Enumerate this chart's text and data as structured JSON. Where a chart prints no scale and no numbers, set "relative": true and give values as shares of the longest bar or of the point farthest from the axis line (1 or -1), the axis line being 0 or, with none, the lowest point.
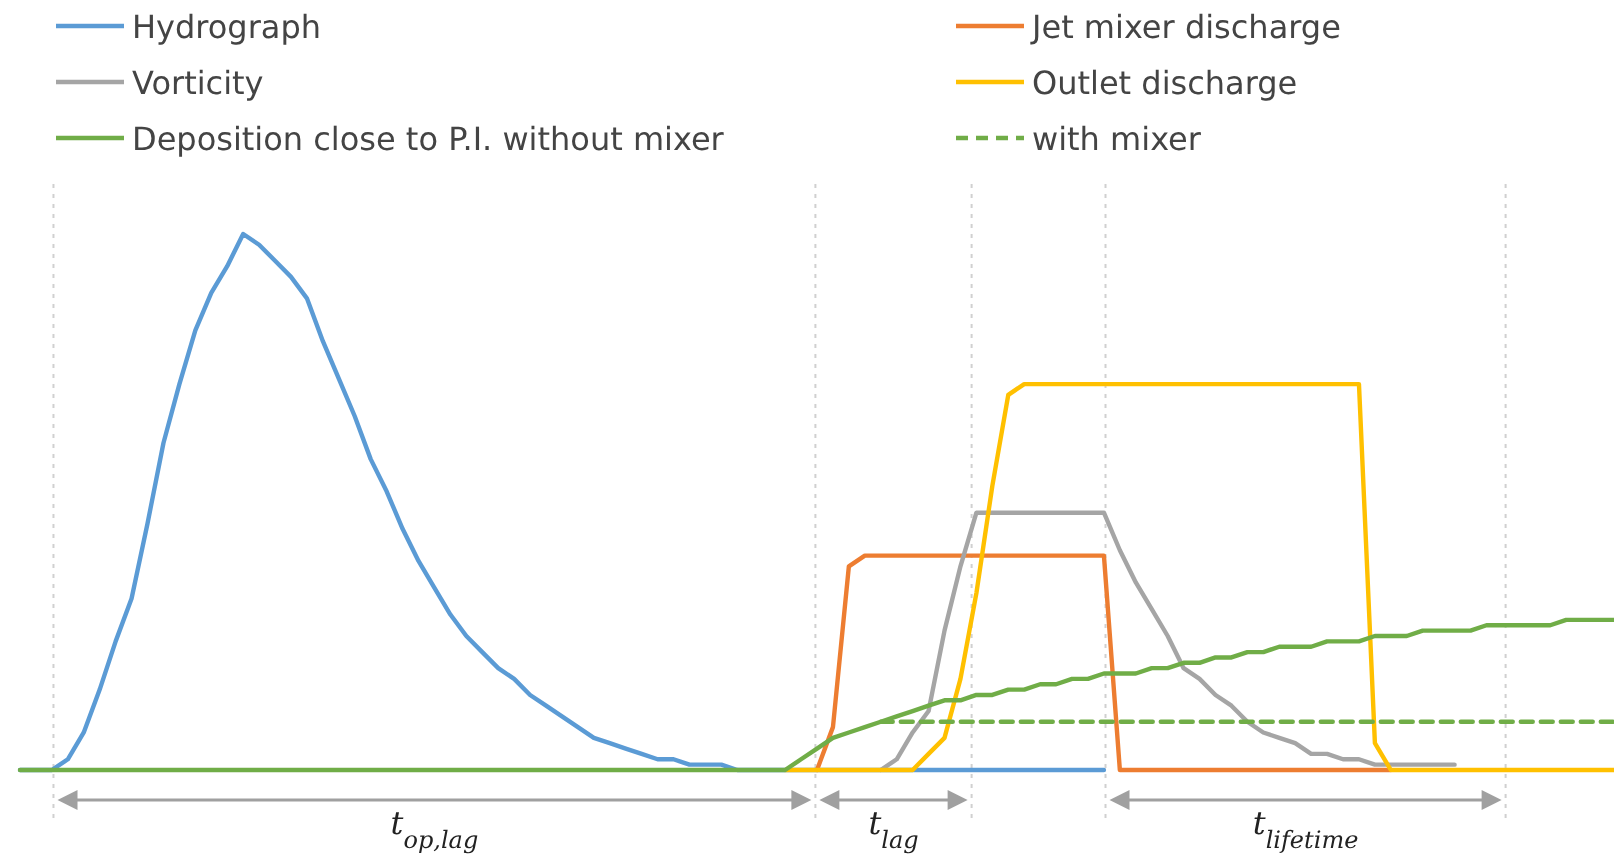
{
  "chart_data": {
    "type": "line",
    "relative": true,
    "legend": "top",
    "categories": [
      null,
      null,
      null,
      null,
      null,
      null,
      null,
      null,
      null,
      null,
      null,
      null,
      null,
      null,
      null,
      null,
      null,
      null,
      null,
      null,
      null,
      null,
      null,
      null,
      null,
      null,
      null,
      null,
      null,
      null,
      null,
      null,
      null,
      null,
      null,
      null,
      null,
      null,
      null,
      null,
      null,
      null,
      null,
      null,
      null,
      null,
      null,
      null,
      null,
      null,
      null,
      null,
      null,
      null,
      null,
      null,
      null,
      null,
      null,
      null,
      null,
      null,
      null,
      null,
      null,
      null,
      null,
      null,
      null,
      null,
      null,
      null,
      null,
      null,
      null,
      null,
      null,
      null,
      null,
      null,
      null,
      null,
      null,
      null,
      null,
      null,
      null,
      null,
      null,
      null,
      null,
      null,
      null,
      null,
      null,
      null,
      null,
      null,
      null,
      null,
      null
    ],
    "series": [
      {
        "name": "Hydrograph",
        "color": "#5b9bd5",
        "values": [
          0,
          0,
          0,
          0.02,
          0.07,
          0.15,
          0.24,
          0.32,
          0.46,
          0.61,
          0.72,
          0.82,
          0.89,
          0.94,
          1,
          0.98,
          0.95,
          0.92,
          0.88,
          0.8,
          0.73,
          0.66,
          0.58,
          0.52,
          0.45,
          0.39,
          0.34,
          0.29,
          0.25,
          0.22,
          0.19,
          0.17,
          0.14,
          0.12,
          0.1,
          0.08,
          0.06,
          0.05,
          0.04,
          0.03,
          0.02,
          0.02,
          0.01,
          0.01,
          0.01,
          0,
          0,
          0,
          0,
          0,
          0,
          0,
          0,
          0,
          0,
          0,
          0,
          0,
          0,
          0,
          0,
          0,
          0,
          0,
          0,
          0,
          0,
          0,
          0,
          null,
          null,
          null,
          null,
          null,
          null,
          null,
          null,
          null,
          null,
          null,
          null,
          null,
          null,
          null,
          null,
          null,
          null,
          null,
          null,
          null,
          null,
          null,
          null,
          null,
          null,
          null,
          null,
          null,
          null,
          null,
          null
        ]
      },
      {
        "name": "Jet mixer discharge",
        "color": "#ed7d31",
        "values": [
          null,
          null,
          null,
          null,
          null,
          null,
          null,
          null,
          null,
          null,
          null,
          null,
          null,
          null,
          null,
          null,
          null,
          null,
          null,
          null,
          null,
          null,
          null,
          null,
          null,
          null,
          null,
          null,
          null,
          null,
          null,
          null,
          null,
          null,
          null,
          null,
          null,
          null,
          null,
          null,
          null,
          null,
          null,
          null,
          null,
          null,
          null,
          null,
          null,
          null,
          0,
          0.08,
          0.38,
          0.4,
          0.4,
          0.4,
          0.4,
          0.4,
          0.4,
          0.4,
          0.4,
          0.4,
          0.4,
          0.4,
          0.4,
          0.4,
          0.4,
          0.4,
          0.4,
          0,
          0,
          0,
          0,
          0,
          0,
          0,
          0,
          0,
          0,
          0,
          0,
          0,
          0,
          0,
          0,
          0,
          0,
          null,
          null,
          null,
          null,
          null,
          null,
          null,
          null,
          null,
          null,
          null,
          null,
          null,
          null
        ]
      },
      {
        "name": "Vorticity",
        "color": "#a5a5a5",
        "values": [
          null,
          null,
          null,
          null,
          null,
          null,
          null,
          null,
          null,
          null,
          null,
          null,
          null,
          null,
          null,
          null,
          null,
          null,
          null,
          null,
          null,
          null,
          null,
          null,
          null,
          null,
          null,
          null,
          null,
          null,
          null,
          null,
          null,
          null,
          null,
          null,
          null,
          null,
          null,
          null,
          null,
          null,
          null,
          null,
          null,
          null,
          null,
          null,
          null,
          null,
          null,
          null,
          null,
          null,
          0,
          0.02,
          0.07,
          0.11,
          0.26,
          0.38,
          0.48,
          0.48,
          0.48,
          0.48,
          0.48,
          0.48,
          0.48,
          0.48,
          0.48,
          0.41,
          0.35,
          0.3,
          0.25,
          0.19,
          0.17,
          0.14,
          0.12,
          0.09,
          0.07,
          0.06,
          0.05,
          0.03,
          0.03,
          0.02,
          0.02,
          0.01,
          0.01,
          0.01,
          0.01,
          0.01,
          0.01,
          null,
          null,
          null,
          null,
          null,
          null,
          null,
          null,
          null,
          null
        ]
      },
      {
        "name": "Outlet discharge",
        "color": "#ffc000",
        "values": [
          null,
          null,
          null,
          null,
          null,
          null,
          null,
          null,
          null,
          null,
          null,
          null,
          null,
          null,
          null,
          null,
          null,
          null,
          null,
          null,
          null,
          null,
          null,
          null,
          null,
          null,
          null,
          null,
          null,
          null,
          null,
          null,
          null,
          null,
          null,
          null,
          null,
          null,
          null,
          null,
          null,
          null,
          null,
          null,
          null,
          null,
          null,
          null,
          0,
          0,
          0,
          0,
          0,
          0,
          0,
          0,
          0,
          0.03,
          0.06,
          0.17,
          0.33,
          0.53,
          0.7,
          0.72,
          0.72,
          0.72,
          0.72,
          0.72,
          0.72,
          0.72,
          0.72,
          0.72,
          0.72,
          0.72,
          0.72,
          0.72,
          0.72,
          0.72,
          0.72,
          0.72,
          0.72,
          0.72,
          0.72,
          0.72,
          0.72,
          0.05,
          0,
          0,
          0,
          0,
          0,
          0,
          0,
          0,
          0,
          0,
          0,
          0,
          0,
          0,
          0
        ]
      },
      {
        "name": "Deposition close to P.I. without mixer",
        "color": "#70ad47",
        "values": [
          0,
          0,
          0,
          0,
          0,
          0,
          0,
          0,
          0,
          0,
          0,
          0,
          0,
          0,
          0,
          0,
          0,
          0,
          0,
          0,
          0,
          0,
          0,
          0,
          0,
          0,
          0,
          0,
          0,
          0,
          0,
          0,
          0,
          0,
          0,
          0,
          0,
          0,
          0,
          0,
          0,
          0,
          0,
          0,
          0,
          0,
          0,
          0,
          0,
          0.02,
          0.04,
          0.06,
          0.07,
          0.08,
          0.09,
          0.1,
          0.11,
          0.12,
          0.13,
          0.13,
          0.14,
          0.14,
          0.15,
          0.15,
          0.16,
          0.16,
          0.17,
          0.17,
          0.18,
          0.18,
          0.18,
          0.19,
          0.19,
          0.2,
          0.2,
          0.21,
          0.21,
          0.22,
          0.22,
          0.23,
          0.23,
          0.23,
          0.24,
          0.24,
          0.24,
          0.25,
          0.25,
          0.25,
          0.26,
          0.26,
          0.26,
          0.26,
          0.27,
          0.27,
          0.27,
          0.27,
          0.27,
          0.28,
          0.28,
          0.28,
          0.28
        ]
      },
      {
        "name": "with mixer",
        "color": "#70ad47",
        "line_style": "dashed",
        "values": [
          null,
          null,
          null,
          null,
          null,
          null,
          null,
          null,
          null,
          null,
          null,
          null,
          null,
          null,
          null,
          null,
          null,
          null,
          null,
          null,
          null,
          null,
          null,
          null,
          null,
          null,
          null,
          null,
          null,
          null,
          null,
          null,
          null,
          null,
          null,
          null,
          null,
          null,
          null,
          null,
          null,
          null,
          null,
          null,
          null,
          null,
          null,
          null,
          null,
          null,
          null,
          null,
          null,
          null,
          0.09,
          0.09,
          0.09,
          0.09,
          0.09,
          0.09,
          0.09,
          0.09,
          0.09,
          0.09,
          0.09,
          0.09,
          0.09,
          0.09,
          0.09,
          0.09,
          0.09,
          0.09,
          0.09,
          0.09,
          0.09,
          0.09,
          0.09,
          0.09,
          0.09,
          0.09,
          0.09,
          0.09,
          0.09,
          0.09,
          0.09,
          0.09,
          0.09,
          0.09,
          0.09,
          0.09,
          0.09,
          0.09,
          0.09,
          0.09,
          0.09,
          0.09,
          0.09,
          0.09,
          0.09,
          0.09,
          0.09
        ]
      }
    ],
    "annotations": [
      "t$_{op,lag}$",
      "t$_{lag}$",
      "t$_{lifetime}$"
    ]
  }
}
